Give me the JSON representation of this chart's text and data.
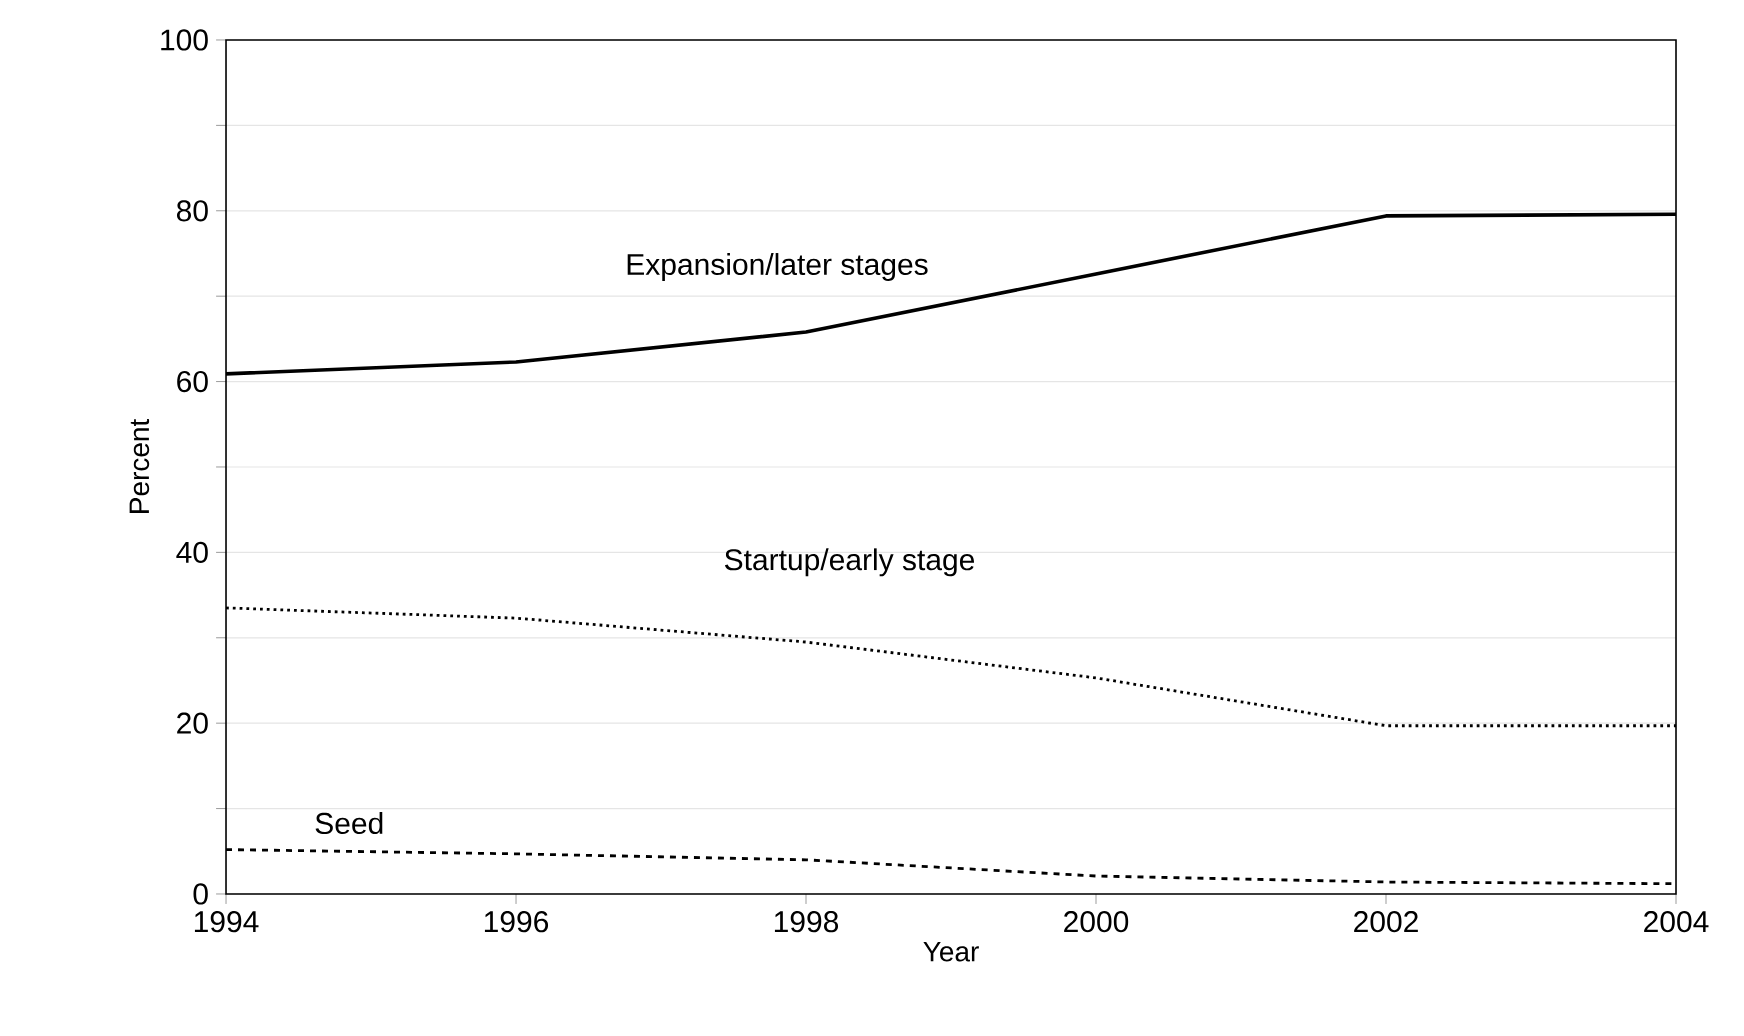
{
  "chart_data": {
    "type": "line",
    "xlabel": "Year",
    "ylabel": "Percent",
    "x": [
      1994,
      1996,
      1998,
      2000,
      2002,
      2004
    ],
    "series": [
      {
        "name": "Expansion/later stages",
        "color": "#000000",
        "line_style": "solid",
        "values": [
          60.9,
          62.3,
          65.8,
          72.6,
          79.4,
          79.6
        ]
      },
      {
        "name": "Startup/early stage",
        "color": "#000000",
        "line_style": "dotted",
        "values": [
          33.5,
          32.3,
          29.5,
          25.3,
          19.7,
          19.7
        ]
      },
      {
        "name": "Seed",
        "color": "#000000",
        "line_style": "dashed",
        "values": [
          5.2,
          4.7,
          4.0,
          2.1,
          1.4,
          1.2
        ]
      }
    ],
    "xlim": [
      1994,
      2004
    ],
    "xticks": [
      1994,
      1996,
      1998,
      2000,
      2002,
      2004
    ],
    "ylim": [
      0,
      100
    ],
    "yticks": [
      0,
      {
        "value": 10,
        "label": null
      },
      20,
      {
        "value": 30,
        "label": null
      },
      40,
      {
        "value": 50,
        "label": null
      },
      60,
      {
        "value": 70,
        "label": null
      },
      80,
      {
        "value": 90,
        "label": null
      },
      100
    ],
    "grid": "y",
    "legend": false,
    "marker": "none"
  }
}
